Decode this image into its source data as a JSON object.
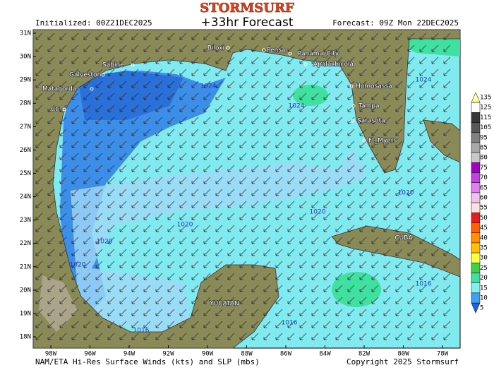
{
  "header": {
    "logo": "STORMSURF",
    "title": "+33hr Forecast",
    "initialized": "Initialized: 00Z21DEC2025",
    "forecast": "Forecast: 09Z Mon 22DEC2025"
  },
  "map": {
    "lat_labels": [
      "31N",
      "30N",
      "29N",
      "28N",
      "27N",
      "26N",
      "25N",
      "24N",
      "23N",
      "22N",
      "21N",
      "20N",
      "19N",
      "18N"
    ],
    "lon_labels": [
      "98W",
      "96W",
      "94W",
      "92W",
      "90W",
      "88W",
      "86W",
      "84W",
      "82W",
      "80W",
      "78W"
    ],
    "places": [
      "Biloxi",
      "Pensa",
      "Panama_City",
      "Apalachicola",
      "Sabine",
      "Galveston",
      "Matagorda",
      "CC",
      "Homosassa",
      "Tampa",
      "Sarasota",
      "Ft_Myers"
    ],
    "regions": [
      "YUCATAN",
      "CUBA"
    ],
    "isobar_labels": [
      1024,
      1024,
      1024,
      1020,
      1020,
      1020,
      1020,
      1020,
      1016,
      1016,
      1016
    ]
  },
  "colorbar": {
    "values": [
      135,
      125,
      115,
      105,
      95,
      85,
      80,
      75,
      70,
      65,
      60,
      55,
      50,
      45,
      40,
      35,
      30,
      25,
      20,
      15,
      10,
      5
    ],
    "colors": [
      "#ffffa0",
      "#ffffff",
      "#383838",
      "#585858",
      "#808080",
      "#a8a8a8",
      "#c8c8c8",
      "#a000c0",
      "#c040e0",
      "#e080f0",
      "#f0c0f0",
      "#ffe0e0",
      "#e02020",
      "#ff6000",
      "#ff9000",
      "#ffc000",
      "#ffff40",
      "#40d040",
      "#40e0a0",
      "#80f0f0",
      "#40a0f0",
      "#2060e0"
    ]
  },
  "footer": {
    "left": "NAM/ETA Hi-Res Surface Winds (kts) and SLP (mbs)",
    "right": "Copyright 2025 Stormsurf"
  }
}
